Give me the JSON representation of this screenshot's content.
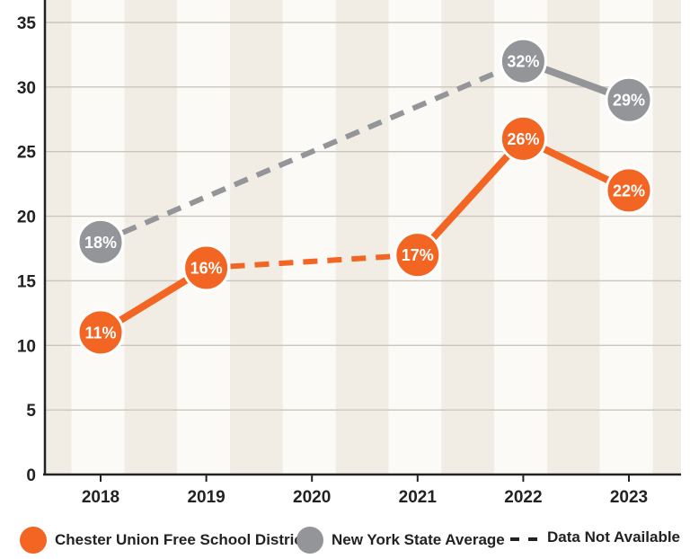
{
  "chart_data": {
    "type": "line",
    "x": [
      "2018",
      "2019",
      "2020",
      "2021",
      "2022",
      "2023"
    ],
    "y_ticks": [
      0,
      5,
      10,
      15,
      20,
      25,
      30,
      35
    ],
    "ylim": [
      0,
      35
    ],
    "grid": true,
    "legend_position": "bottom",
    "series": [
      {
        "name": "Chester Union Free School District",
        "color": "#f26522",
        "values": [
          11,
          16,
          null,
          17,
          26,
          22
        ],
        "labels": [
          "11%",
          "16%",
          null,
          "17%",
          "26%",
          "22%"
        ]
      },
      {
        "name": "New York State Average",
        "color": "#939598",
        "values": [
          18,
          null,
          null,
          null,
          32,
          29
        ],
        "labels": [
          "18%",
          null,
          null,
          null,
          "32%",
          "29%"
        ]
      }
    ],
    "legend": {
      "district": "Chester Union Free School District",
      "state": "New York State Average",
      "na": "Data Not Available"
    },
    "colors": {
      "band_light": "#fbfaf7",
      "band_dark": "#f1ede4",
      "grid": "#c9c6bf",
      "axis": "#222222"
    }
  }
}
